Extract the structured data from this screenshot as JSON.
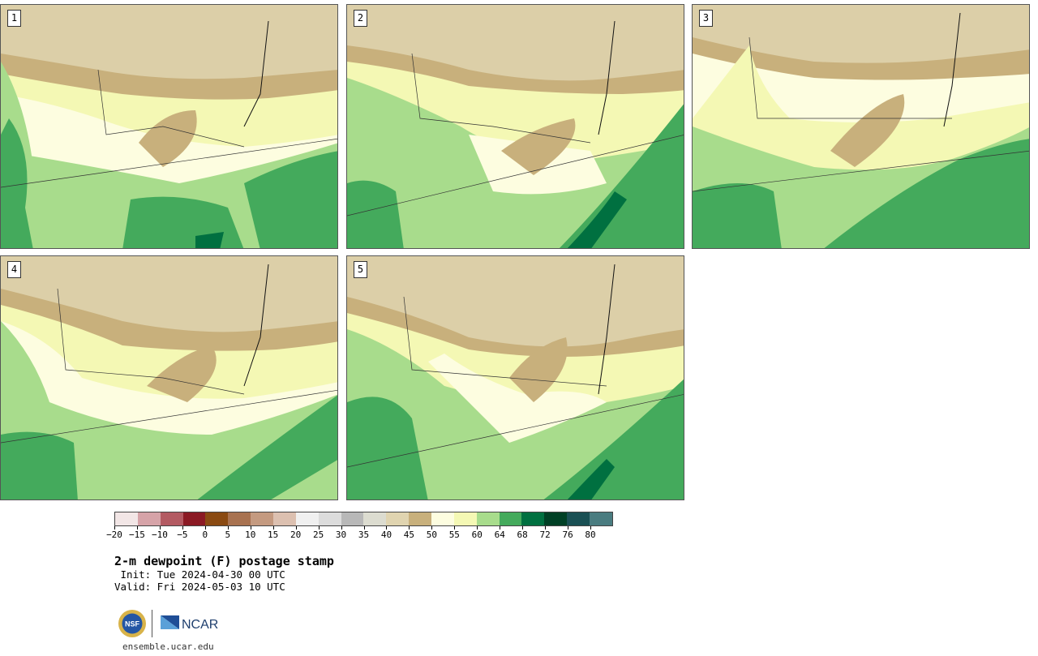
{
  "panels": [
    {
      "label": "1"
    },
    {
      "label": "2"
    },
    {
      "label": "3"
    },
    {
      "label": "4"
    },
    {
      "label": "5"
    }
  ],
  "legend": {
    "colors": [
      "#f2e6e6",
      "#d6a3a8",
      "#b35a62",
      "#8b1a24",
      "#8a4a12",
      "#a87250",
      "#c49a80",
      "#dcc0b0",
      "#f0f0f0",
      "#dcdcdc",
      "#b8b8b8",
      "#dcdcd0",
      "#e0d4b0",
      "#c8b07c",
      "#fdfde0",
      "#f4f8b4",
      "#a8dc8c",
      "#44aa5c",
      "#007040",
      "#004025",
      "#1a5054",
      "#4a7c80"
    ],
    "ticks": [
      "−20",
      "−15",
      "−10",
      "−5",
      "0",
      "5",
      "10",
      "15",
      "20",
      "25",
      "30",
      "35",
      "40",
      "45",
      "50",
      "55",
      "60",
      "64",
      "68",
      "72",
      "76",
      "80"
    ]
  },
  "title": "2-m dewpoint (F) postage stamp",
  "init": " Init: Tue 2024-04-30 00 UTC",
  "valid": "Valid: Fri 2024-05-03 10 UTC",
  "logos": {
    "nsf": "NSF",
    "ncar": "NCAR"
  },
  "site": "ensemble.ucar.edu"
}
